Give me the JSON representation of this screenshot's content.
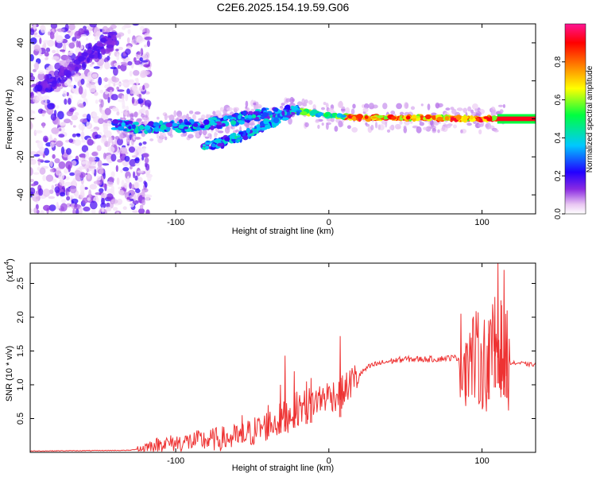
{
  "figure": {
    "title": "C2E6.2025.154.19.59.G06"
  },
  "chart_data": [
    {
      "type": "heatmap",
      "xlabel": "Height of straight line (km)",
      "ylabel": "Frequency (Hz)",
      "xlim": [
        -195,
        135
      ],
      "ylim": [
        -50,
        50
      ],
      "x_ticks": [
        -100,
        0,
        100
      ],
      "y_ticks": [
        -40,
        -20,
        0,
        20,
        40
      ],
      "colorbar": {
        "label": "Normalized spectral amplitude",
        "range": [
          0,
          1
        ],
        "ticks": [
          0.0,
          0.2,
          0.4,
          0.6,
          0.8
        ],
        "tick_labels": [
          "0.0",
          "0.2",
          "0.4",
          "0.6",
          "0.8"
        ],
        "colormap": [
          "#ffffff",
          "#e9c6f2",
          "#8a2be2",
          "#2200ff",
          "#00c8ff",
          "#00ff40",
          "#ffff00",
          "#ff8000",
          "#ff0000",
          "#ff1493"
        ]
      },
      "features": {
        "noise_region_x": [
          -195,
          -125
        ],
        "main_trace": [
          [
            -140,
            -3
          ],
          [
            -120,
            -5
          ],
          [
            -100,
            -4
          ],
          [
            -80,
            -3
          ],
          [
            -60,
            0
          ],
          [
            -40,
            3
          ],
          [
            -20,
            4
          ],
          [
            0,
            2
          ],
          [
            20,
            0.5
          ],
          [
            60,
            0.5
          ],
          [
            100,
            0
          ],
          [
            135,
            0
          ]
        ],
        "lower_branch": [
          [
            -82,
            -15
          ],
          [
            -60,
            -10
          ],
          [
            -40,
            -3
          ],
          [
            -25,
            3
          ]
        ],
        "diagonal_noise": [
          [
            -190,
            15
          ],
          [
            -165,
            28
          ],
          [
            -140,
            42
          ]
        ],
        "strong_band_x": [
          110,
          135
        ]
      }
    },
    {
      "type": "line",
      "xlabel": "Height of straight line (km)",
      "ylabel": "SNR (10 * v/v)",
      "y_scale_label": "(x10",
      "y_scale_exp": "4",
      "y_scale_close": ")",
      "xlim": [
        -195,
        135
      ],
      "ylim": [
        0,
        2.8
      ],
      "x_ticks": [
        -100,
        0,
        100
      ],
      "y_ticks": [
        0.5,
        1.0,
        1.5,
        2.0,
        2.5
      ],
      "y_tick_labels": [
        "0.5",
        "1.0",
        "1.5",
        "2.0",
        "2.5"
      ],
      "color": "#ee3333",
      "series": [
        {
          "x": [
            -195,
            -130,
            -125,
            -110,
            -100,
            -90,
            -80,
            -70,
            -60,
            -50,
            -40,
            -30,
            -20,
            -10,
            0,
            5,
            10,
            15,
            20,
            25,
            30,
            40,
            50,
            60,
            70,
            80,
            90,
            95,
            100,
            105,
            108,
            110,
            112,
            115,
            120,
            125,
            130,
            135
          ],
          "y": [
            0.02,
            0.03,
            0.05,
            0.12,
            0.14,
            0.16,
            0.18,
            0.2,
            0.22,
            0.3,
            0.4,
            0.5,
            0.65,
            0.75,
            0.85,
            0.85,
            0.9,
            1.05,
            1.15,
            1.25,
            1.3,
            1.35,
            1.38,
            1.38,
            1.38,
            1.4,
            1.4,
            1.4,
            1.35,
            1.3,
            1.6,
            1.7,
            1.55,
            1.35,
            1.32,
            1.32,
            1.3,
            1.3
          ]
        }
      ],
      "spikes": [
        {
          "x": -57,
          "y": 0.55
        },
        {
          "x": -40,
          "y": 0.7
        },
        {
          "x": -32,
          "y": 1.0
        },
        {
          "x": -29,
          "y": 1.43
        },
        {
          "x": -23,
          "y": 1.2
        },
        {
          "x": -15,
          "y": 1.05
        },
        {
          "x": -12,
          "y": 1.1
        },
        {
          "x": 7,
          "y": 1.72
        },
        {
          "x": 89,
          "y": 1.62
        },
        {
          "x": 104,
          "y": 1.95
        },
        {
          "x": 108,
          "y": 2.3
        },
        {
          "x": 110,
          "y": 2.8
        },
        {
          "x": 112,
          "y": 2.25
        },
        {
          "x": 114,
          "y": 2.7
        },
        {
          "x": 116,
          "y": 2.1
        }
      ]
    }
  ]
}
